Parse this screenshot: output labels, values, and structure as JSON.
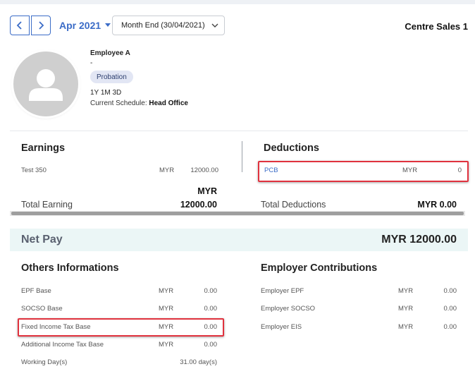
{
  "header": {
    "month_label": "Apr 2021",
    "period_value": "Month End (30/04/2021)",
    "company_name": "Centre Sales 1"
  },
  "employee": {
    "name": "Employee A",
    "subtitle": "-",
    "status_badge": "Probation",
    "tenure": "1Y 1M 3D",
    "schedule_label": "Current Schedule:",
    "schedule_value": "Head Office"
  },
  "earnings": {
    "title": "Earnings",
    "items": [
      {
        "label": "Test 350",
        "currency": "MYR",
        "amount": "12000.00"
      }
    ],
    "currency_header": "MYR",
    "total_label": "Total Earning",
    "total_value": "12000.00"
  },
  "deductions": {
    "title": "Deductions",
    "items": [
      {
        "label": "PCB",
        "currency": "MYR",
        "amount": "0"
      }
    ],
    "total_label": "Total Deductions",
    "total_value": "MYR 0.00"
  },
  "net_pay": {
    "label": "Net Pay",
    "value": "MYR 12000.00"
  },
  "others": {
    "title": "Others Informations",
    "items": [
      {
        "label": "EPF Base",
        "currency": "MYR",
        "amount": "0.00"
      },
      {
        "label": "SOCSO Base",
        "currency": "MYR",
        "amount": "0.00"
      },
      {
        "label": "Fixed Income Tax Base",
        "currency": "MYR",
        "amount": "0.00"
      },
      {
        "label": "Additional Income Tax Base",
        "currency": "MYR",
        "amount": "0.00"
      },
      {
        "label": "Working Day(s)",
        "currency": "",
        "amount": "31.00 day(s)"
      }
    ]
  },
  "employer": {
    "title": "Employer Contributions",
    "items": [
      {
        "label": "Employer EPF",
        "currency": "MYR",
        "amount": "0.00"
      },
      {
        "label": "Employer SOCSO",
        "currency": "MYR",
        "amount": "0.00"
      },
      {
        "label": "Employer EIS",
        "currency": "MYR",
        "amount": "0.00"
      }
    ]
  },
  "colors": {
    "accent": "#3b6cc7",
    "highlight": "#e0323e",
    "net_pay_bg": "#ebf6f6"
  }
}
